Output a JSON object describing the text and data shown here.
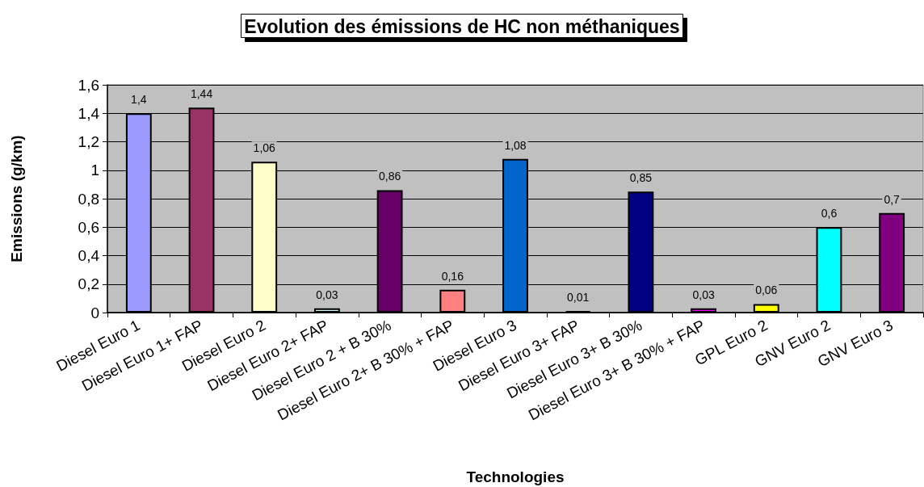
{
  "chart_data": {
    "type": "bar",
    "title": "Evolution des émissions de HC non méthaniques",
    "xlabel": "Technologies",
    "ylabel": "Emissions (g/km)",
    "categories": [
      "Diesel Euro 1",
      "Diesel Euro 1+ FAP",
      "Diesel Euro 2",
      "Diesel Euro 2+ FAP",
      "Diesel Euro 2 + B 30%",
      "Diesel Euro 2+ B 30% + FAP",
      "Diesel Euro 3",
      "Diesel Euro 3+ FAP",
      "Diesel Euro 3+ B 30%",
      "Diesel Euro 3+ B 30% + FAP",
      "GPL Euro 2",
      "GNV Euro 2",
      "GNV Euro 3"
    ],
    "values": [
      1.4,
      1.44,
      1.06,
      0.03,
      0.86,
      0.16,
      1.08,
      0.01,
      0.85,
      0.03,
      0.06,
      0.6,
      0.7
    ],
    "value_labels": [
      "1,4",
      "1,44",
      "1,06",
      "0,03",
      "0,86",
      "0,16",
      "1,08",
      "0,01",
      "0,85",
      "0,03",
      "0,06",
      "0,6",
      "0,7"
    ],
    "colors": [
      "#9999ff",
      "#993366",
      "#ffffcc",
      "#ccffff",
      "#660066",
      "#ff8080",
      "#0066cc",
      "#000000",
      "#000080",
      "#ff00ff",
      "#ffff00",
      "#00ffff",
      "#800080"
    ],
    "ylim": [
      0,
      1.6
    ],
    "yticks": [
      0,
      {
        "value": 0.2,
        "label": "0,2"
      },
      {
        "value": 0.4,
        "label": "0,4"
      },
      {
        "value": 0.6,
        "label": "0,6"
      },
      {
        "value": 0.8,
        "label": "0,8"
      },
      1,
      {
        "value": 1.2,
        "label": "1,2"
      },
      {
        "value": 1.4,
        "label": "1,4"
      },
      {
        "value": 1.6,
        "label": "1,6"
      }
    ],
    "grid": "y"
  }
}
